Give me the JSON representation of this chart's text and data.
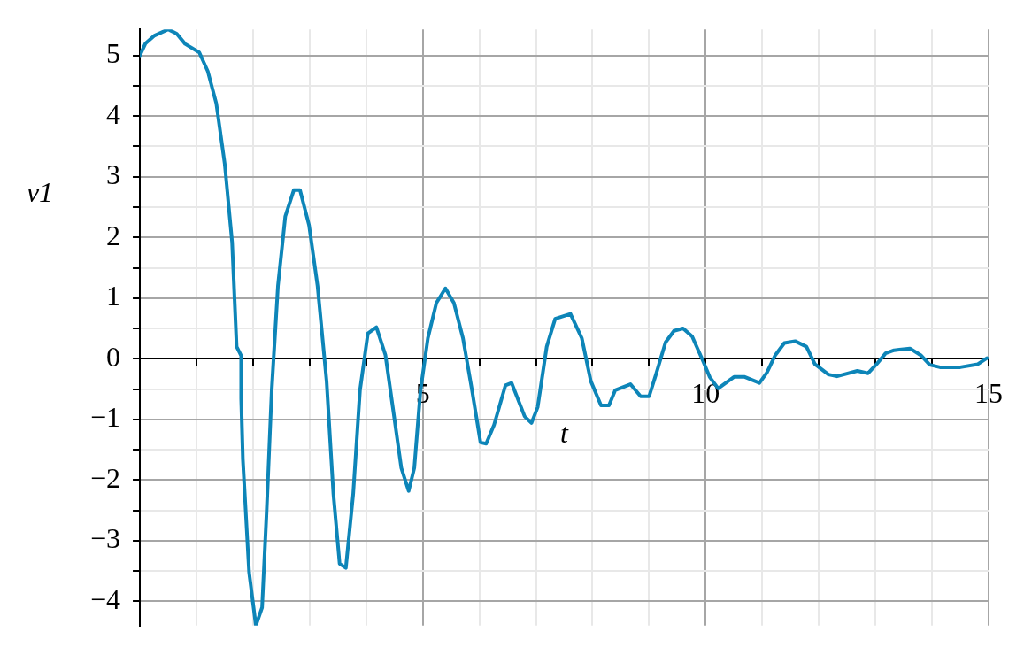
{
  "chart_data": {
    "type": "line",
    "xlabel": "t",
    "ylabel": "v1",
    "grid": true,
    "marker": "none",
    "line_style": "solid",
    "xlim": [
      0,
      15
    ],
    "ylim": [
      -4.4,
      5.43
    ],
    "xticks": [
      {
        "value": 0,
        "label": null
      },
      {
        "value": 1,
        "label": null
      },
      {
        "value": 2,
        "label": null
      },
      {
        "value": 3,
        "label": null
      },
      {
        "value": 4,
        "label": null
      },
      5,
      {
        "value": 6,
        "label": null
      },
      {
        "value": 7,
        "label": null
      },
      {
        "value": 8,
        "label": null
      },
      {
        "value": 9,
        "label": null
      },
      10,
      {
        "value": 11,
        "label": null
      },
      {
        "value": 12,
        "label": null
      },
      {
        "value": 13,
        "label": null
      },
      {
        "value": 14,
        "label": null
      },
      15
    ],
    "yticks": [
      {
        "value": -4,
        "label": "−4"
      },
      {
        "value": -3.5,
        "label": null
      },
      {
        "value": -3,
        "label": "−3"
      },
      {
        "value": -2.5,
        "label": null
      },
      {
        "value": -2,
        "label": "−2"
      },
      {
        "value": -1.5,
        "label": null
      },
      {
        "value": -1,
        "label": "−1"
      },
      {
        "value": -0.5,
        "label": null
      },
      0,
      {
        "value": 0.5,
        "label": null
      },
      1,
      {
        "value": 1.5,
        "label": null
      },
      2,
      {
        "value": 2.5,
        "label": null
      },
      3,
      {
        "value": 3.5,
        "label": null
      },
      4,
      {
        "value": 4.5,
        "label": null
      },
      5
    ],
    "x": [
      0,
      0.1,
      0.26,
      0.5,
      0.65,
      0.8,
      1.05,
      1.2,
      1.35,
      1.5,
      1.63,
      1.71,
      1.79,
      1.79,
      1.82,
      1.93,
      2.05,
      2.16,
      2.24,
      2.33,
      2.44,
      2.57,
      2.72,
      2.83,
      2.99,
      3.14,
      3.3,
      3.42,
      3.53,
      3.64,
      3.77,
      3.89,
      4.03,
      4.18,
      4.34,
      4.47,
      4.62,
      4.75,
      4.85,
      4.96,
      5.09,
      5.24,
      5.4,
      5.55,
      5.71,
      5.87,
      6.02,
      6.12,
      6.26,
      6.46,
      6.57,
      6.8,
      6.92,
      7.03,
      7.19,
      7.34,
      7.61,
      7.81,
      7.97,
      8.15,
      8.29,
      8.4,
      8.67,
      8.85,
      9.0,
      9.13,
      9.29,
      9.44,
      9.6,
      9.76,
      9.94,
      10.07,
      10.22,
      10.5,
      10.69,
      10.95,
      11.08,
      11.23,
      11.39,
      11.58,
      11.78,
      11.93,
      12.17,
      12.32,
      12.68,
      12.87,
      13.02,
      13.18,
      13.33,
      13.61,
      13.8,
      13.96,
      14.14,
      14.5,
      14.81,
      14.97
    ],
    "series": [
      {
        "color": "#0d85b8",
        "values": [
          5.0,
          5.2,
          5.33,
          5.43,
          5.36,
          5.19,
          5.05,
          4.74,
          4.21,
          3.21,
          1.92,
          0.2,
          0.05,
          -0.66,
          -1.66,
          -3.52,
          -4.4,
          -4.1,
          -2.52,
          -0.52,
          1.2,
          2.35,
          2.78,
          2.78,
          2.2,
          1.2,
          -0.37,
          -2.23,
          -3.38,
          -3.45,
          -2.23,
          -0.52,
          0.42,
          0.52,
          0.06,
          -0.8,
          -1.8,
          -2.18,
          -1.8,
          -0.52,
          0.34,
          0.92,
          1.16,
          0.92,
          0.34,
          -0.52,
          -1.38,
          -1.4,
          -1.09,
          -0.44,
          -0.4,
          -0.95,
          -1.06,
          -0.8,
          0.2,
          0.66,
          0.74,
          0.34,
          -0.37,
          -0.77,
          -0.77,
          -0.52,
          -0.42,
          -0.62,
          -0.62,
          -0.23,
          0.27,
          0.46,
          0.5,
          0.37,
          -0.01,
          -0.3,
          -0.49,
          -0.3,
          -0.3,
          -0.4,
          -0.23,
          0.06,
          0.26,
          0.29,
          0.2,
          -0.09,
          -0.26,
          -0.29,
          -0.2,
          -0.24,
          -0.09,
          0.09,
          0.14,
          0.17,
          0.06,
          -0.1,
          -0.14,
          -0.14,
          -0.09,
          0.01
        ]
      }
    ]
  }
}
